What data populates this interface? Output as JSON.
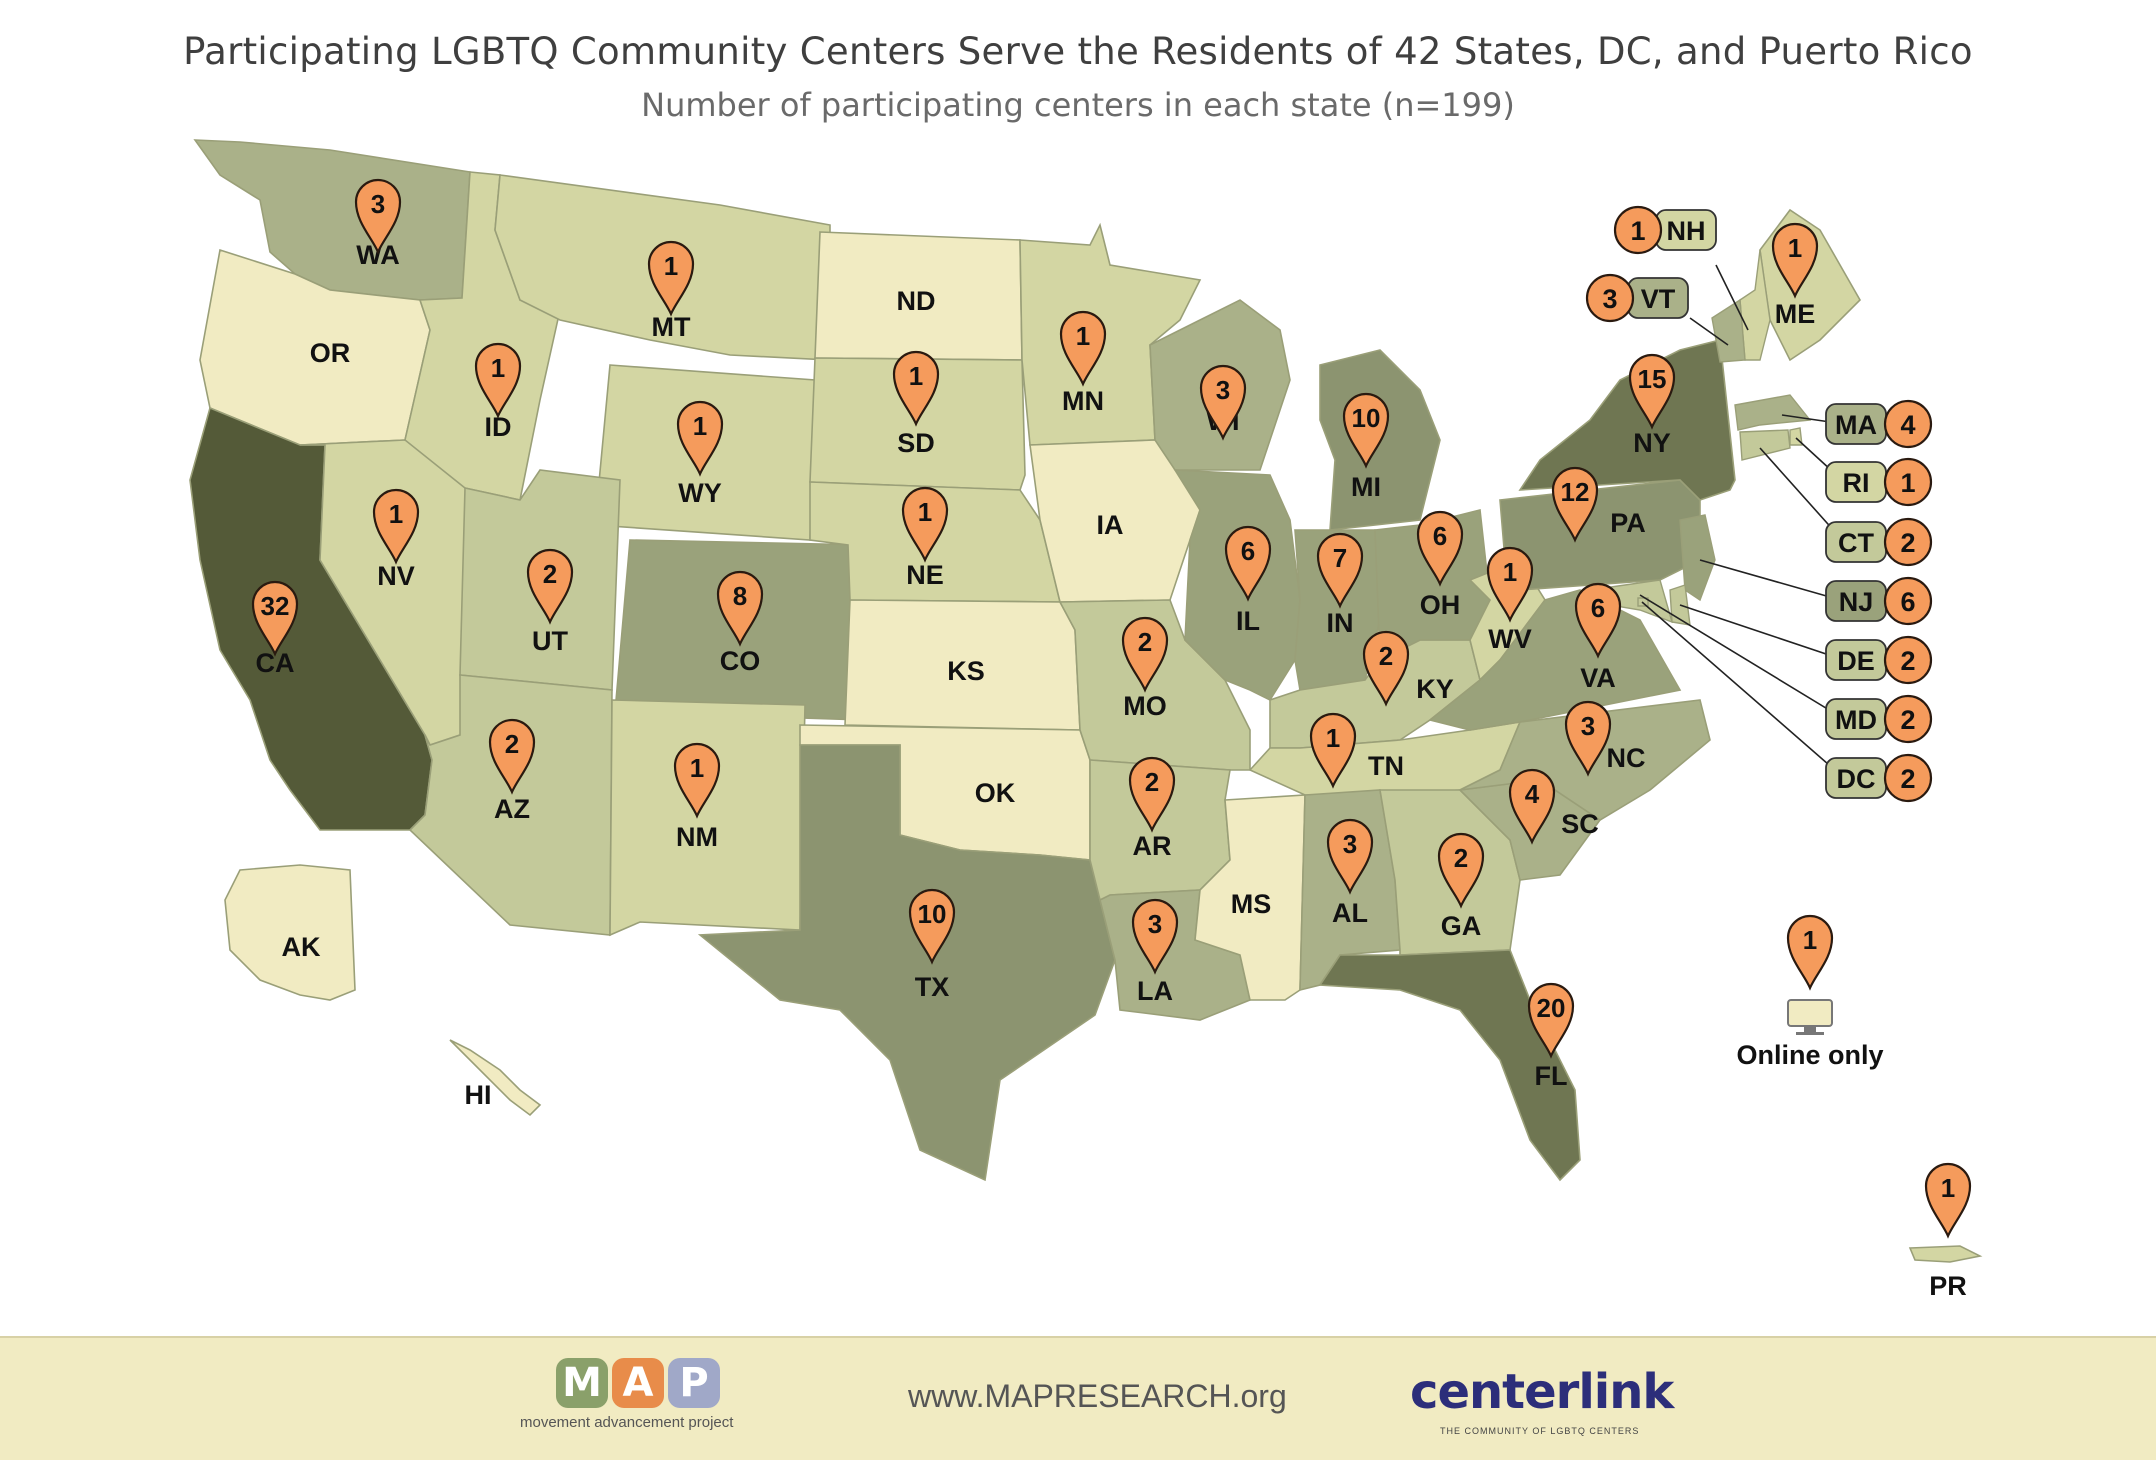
{
  "title": "Participating LGBTQ Community Centers Serve the Residents of 42 States, DC, and Puerto Rico",
  "subtitle": "Number of participating centers in each state (n=199)",
  "colors": {
    "pin": "#f59b5c",
    "pin_border": "#2a1a10",
    "shade_0": "#f1ebc2",
    "shade_1": "#d3d6a3",
    "shade_2": "#c3c99a",
    "shade_3": "#aab189",
    "shade_6": "#9aa27b",
    "shade_10": "#8c9470",
    "shade_15": "#6f7652",
    "shade_32": "#545a38"
  },
  "states": [
    {
      "abbr": "WA",
      "count": 3
    },
    {
      "abbr": "OR",
      "count": 0
    },
    {
      "abbr": "CA",
      "count": 32
    },
    {
      "abbr": "NV",
      "count": 1
    },
    {
      "abbr": "ID",
      "count": 1
    },
    {
      "abbr": "MT",
      "count": 1
    },
    {
      "abbr": "WY",
      "count": 1
    },
    {
      "abbr": "UT",
      "count": 2
    },
    {
      "abbr": "AZ",
      "count": 2
    },
    {
      "abbr": "CO",
      "count": 8
    },
    {
      "abbr": "NM",
      "count": 1
    },
    {
      "abbr": "ND",
      "count": 0
    },
    {
      "abbr": "SD",
      "count": 1
    },
    {
      "abbr": "NE",
      "count": 1
    },
    {
      "abbr": "KS",
      "count": 0
    },
    {
      "abbr": "OK",
      "count": 0
    },
    {
      "abbr": "TX",
      "count": 10
    },
    {
      "abbr": "MN",
      "count": 1
    },
    {
      "abbr": "IA",
      "count": 0
    },
    {
      "abbr": "MO",
      "count": 2
    },
    {
      "abbr": "AR",
      "count": 2
    },
    {
      "abbr": "LA",
      "count": 3
    },
    {
      "abbr": "WI",
      "count": 3
    },
    {
      "abbr": "IL",
      "count": 6
    },
    {
      "abbr": "MS",
      "count": 0
    },
    {
      "abbr": "MI",
      "count": 10
    },
    {
      "abbr": "IN",
      "count": 7
    },
    {
      "abbr": "KY",
      "count": 2
    },
    {
      "abbr": "TN",
      "count": 1
    },
    {
      "abbr": "AL",
      "count": 3
    },
    {
      "abbr": "OH",
      "count": 6
    },
    {
      "abbr": "WV",
      "count": 1
    },
    {
      "abbr": "GA",
      "count": 2
    },
    {
      "abbr": "FL",
      "count": 20
    },
    {
      "abbr": "SC",
      "count": 4
    },
    {
      "abbr": "NC",
      "count": 3
    },
    {
      "abbr": "VA",
      "count": 6
    },
    {
      "abbr": "PA",
      "count": 12
    },
    {
      "abbr": "NY",
      "count": 15
    },
    {
      "abbr": "ME",
      "count": 1
    },
    {
      "abbr": "AK",
      "count": 0
    },
    {
      "abbr": "HI",
      "count": 0
    },
    {
      "abbr": "PR",
      "count": 1
    }
  ],
  "small_states": [
    {
      "abbr": "NH",
      "count": 1
    },
    {
      "abbr": "VT",
      "count": 3
    },
    {
      "abbr": "MA",
      "count": 4
    },
    {
      "abbr": "RI",
      "count": 1
    },
    {
      "abbr": "CT",
      "count": 2
    },
    {
      "abbr": "NJ",
      "count": 6
    },
    {
      "abbr": "DE",
      "count": 2
    },
    {
      "abbr": "MD",
      "count": 2
    },
    {
      "abbr": "DC",
      "count": 2
    }
  ],
  "online": {
    "label": "Online only",
    "count": 1,
    "icon": "monitor-icon"
  },
  "footer": {
    "map_logo_letters": [
      "M",
      "A",
      "P"
    ],
    "map_logo_colors": [
      "#8aa06a",
      "#e88c4a",
      "#a0a8c8"
    ],
    "map_logo_sub": "movement advancement project",
    "url": "www.MAPRESEARCH.org",
    "centerlink_logo": "centerlink",
    "centerlink_sub": "THE COMMUNITY OF LGBTQ CENTERS"
  }
}
